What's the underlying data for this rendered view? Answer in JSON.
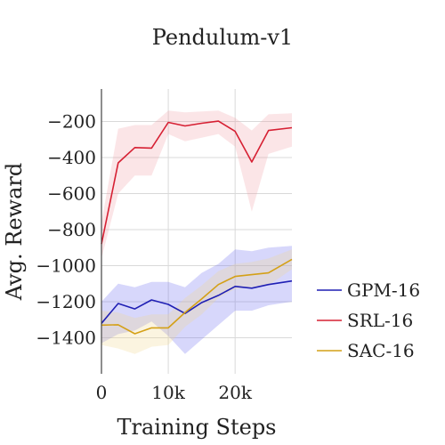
{
  "chart_data": {
    "type": "line",
    "title": "Pendulum-v1",
    "xlabel": "Training Steps",
    "ylabel": "Avg. Reward",
    "xlim": [
      0,
      28500
    ],
    "ylim": [
      -1600,
      -20
    ],
    "x_ticks": [
      0,
      10000,
      20000
    ],
    "x_tick_labels": [
      "0",
      "10k",
      "20k"
    ],
    "y_ticks": [
      -1400,
      -1200,
      -1000,
      -800,
      -600,
      -400,
      -200
    ],
    "y_tick_labels": [
      "−1400",
      "−1200",
      "−1000",
      "−800",
      "−600",
      "−400",
      "−200"
    ],
    "grid": true,
    "legend_position": "right",
    "series": [
      {
        "name": "GPM-16",
        "color": "#1f1fb4",
        "band_color": "#6f6ff0",
        "x": [
          0,
          2500,
          5000,
          7500,
          10000,
          12500,
          15000,
          17500,
          20000,
          22500,
          25000,
          28500
        ],
        "y": [
          -1320,
          -1210,
          -1240,
          -1190,
          -1215,
          -1265,
          -1205,
          -1165,
          -1115,
          -1125,
          -1105,
          -1085
        ],
        "lower": [
          -1430,
          -1380,
          -1360,
          -1310,
          -1390,
          -1490,
          -1410,
          -1330,
          -1250,
          -1250,
          -1220,
          -1200
        ],
        "upper": [
          -1200,
          -1100,
          -1120,
          -1090,
          -1090,
          -1120,
          -1040,
          -990,
          -910,
          -920,
          -900,
          -890
        ]
      },
      {
        "name": "SRL-16",
        "color": "#d62033",
        "band_color": "#f2a0a8",
        "x": [
          0,
          2500,
          5000,
          7500,
          10000,
          12500,
          15000,
          17500,
          20000,
          22500,
          25000,
          28500
        ],
        "y": [
          -880,
          -430,
          -345,
          -348,
          -205,
          -225,
          -210,
          -198,
          -255,
          -425,
          -250,
          -235
        ],
        "lower": [
          -960,
          -600,
          -500,
          -500,
          -270,
          -310,
          -290,
          -270,
          -340,
          -700,
          -380,
          -340
        ],
        "upper": [
          -760,
          -240,
          -220,
          -220,
          -140,
          -150,
          -145,
          -140,
          -180,
          -250,
          -160,
          -155
        ]
      },
      {
        "name": "SAC-16",
        "color": "#d4a017",
        "band_color": "#f0d890",
        "x": [
          0,
          2500,
          5000,
          7500,
          10000,
          12500,
          15000,
          17500,
          20000,
          22500,
          25000,
          28500
        ],
        "y": [
          -1330,
          -1328,
          -1378,
          -1345,
          -1345,
          -1260,
          -1185,
          -1105,
          -1060,
          -1050,
          -1040,
          -965
        ],
        "lower": [
          -1440,
          -1460,
          -1490,
          -1450,
          -1440,
          -1340,
          -1270,
          -1180,
          -1130,
          -1120,
          -1110,
          -1020
        ],
        "upper": [
          -1250,
          -1260,
          -1290,
          -1270,
          -1270,
          -1180,
          -1110,
          -1030,
          -990,
          -980,
          -960,
          -910
        ]
      }
    ]
  }
}
